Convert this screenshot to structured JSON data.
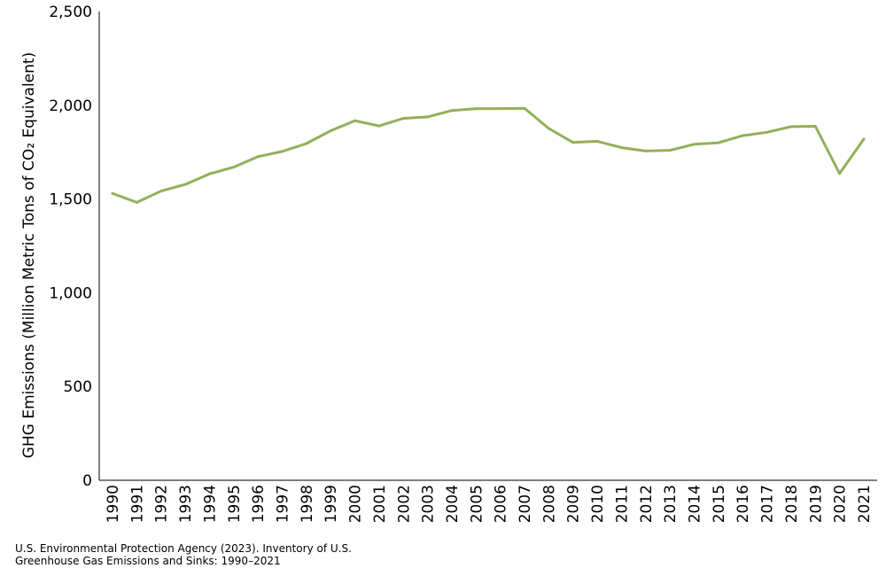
{
  "chart_data": {
    "type": "line",
    "title": "",
    "xlabel": "",
    "ylabel": "GHG Emissions (Million Metric Tons of CO₂ Equivalent)",
    "x": [
      1990,
      1991,
      1992,
      1993,
      1994,
      1995,
      1996,
      1997,
      1998,
      1999,
      2000,
      2001,
      2002,
      2003,
      2004,
      2005,
      2006,
      2007,
      2008,
      2009,
      2010,
      2011,
      2012,
      2013,
      2014,
      2015,
      2016,
      2017,
      2018,
      2019,
      2020,
      2021
    ],
    "x_tick_labels": [
      "1990",
      "1991",
      "1992",
      "1993",
      "1994",
      "1995",
      "1996",
      "1997",
      "1998",
      "1999",
      "2000",
      "2001",
      "2002",
      "2003",
      "2004",
      "2005",
      "2006",
      "2007",
      "2008",
      "2009",
      "2010",
      "2011",
      "2012",
      "2013",
      "2014",
      "2015",
      "2016",
      "2017",
      "2018",
      "2019",
      "2020",
      "2021"
    ],
    "series": [
      {
        "values": [
          1530,
          1482,
          1542,
          1578,
          1634,
          1670,
          1726,
          1754,
          1796,
          1864,
          1918,
          1890,
          1930,
          1938,
          1972,
          1982,
          1982,
          1984,
          1876,
          1802,
          1808,
          1774,
          1756,
          1760,
          1792,
          1800,
          1838,
          1856,
          1886,
          1888,
          1636,
          1820
        ],
        "color": "#92b05a"
      }
    ],
    "ylim": [
      0,
      2500
    ],
    "yticks": [
      0,
      500,
      1000,
      1500,
      2000,
      2500
    ],
    "y_tick_labels": [
      "0",
      "500",
      "1,000",
      "1,500",
      "2,000",
      "2,500"
    ],
    "grid": false,
    "legend": "none"
  },
  "source_note": {
    "line1": "U.S. Environmental Protection Agency (2023). Inventory of U.S.",
    "line2": "Greenhouse Gas Emissions and Sinks: 1990–2021"
  }
}
